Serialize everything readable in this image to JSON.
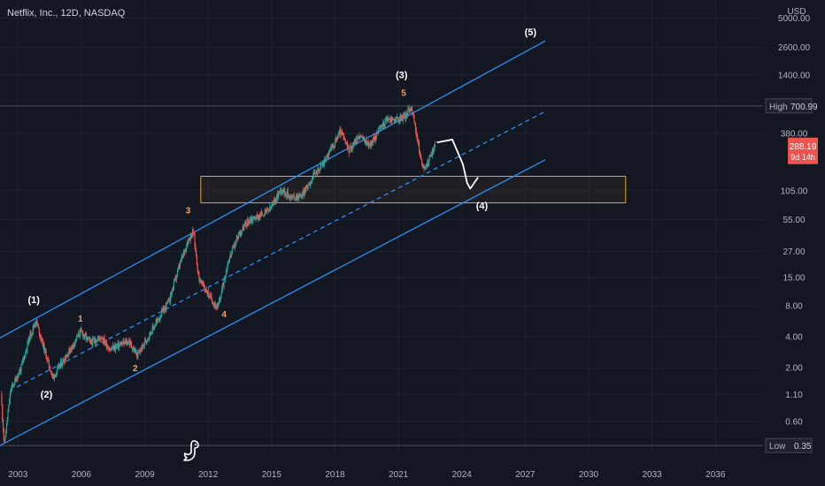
{
  "header": {
    "title": "Netflix, Inc., 12D, NASDAQ"
  },
  "colors": {
    "background": "#131722",
    "grid": "#1e222d",
    "text": "#b2b5be",
    "channel": "#2a8ff7",
    "bull": "#26a69a",
    "bear": "#ef5350",
    "zone": "#f0a030",
    "projection": "#ffffff",
    "label_minor": "#f0a070",
    "label_major": "#ffffff"
  },
  "chart_data": {
    "type": "candlestick",
    "title": "Netflix, Inc., 12D, NASDAQ",
    "currency_label": "USD",
    "y_scale": "log",
    "ylim": [
      0.3,
      7500
    ],
    "xlim": [
      2002.4,
      2038.5
    ],
    "x_ticks": [
      "2003",
      "2006",
      "2009",
      "2012",
      "2015",
      "2018",
      "2021",
      "2024",
      "2027",
      "2030",
      "2033",
      "2036"
    ],
    "y_ticks": [
      "5000.00",
      "2600.00",
      "1400.00",
      "380.00",
      "105.00",
      "55.00",
      "27.00",
      "15.00",
      "8.00",
      "4.00",
      "2.00",
      "1.10",
      "0.60"
    ],
    "price_path": [
      [
        2002.45,
        1.1
      ],
      [
        2002.6,
        0.35
      ],
      [
        2002.9,
        1.2
      ],
      [
        2003.4,
        2.0
      ],
      [
        2003.8,
        4.0
      ],
      [
        2004.1,
        5.8
      ],
      [
        2004.5,
        3.0
      ],
      [
        2004.9,
        1.6
      ],
      [
        2005.3,
        2.2
      ],
      [
        2005.8,
        3.2
      ],
      [
        2006.2,
        4.5
      ],
      [
        2006.7,
        3.5
      ],
      [
        2007.2,
        4.0
      ],
      [
        2007.6,
        3.0
      ],
      [
        2008.0,
        3.3
      ],
      [
        2008.5,
        3.6
      ],
      [
        2008.9,
        2.6
      ],
      [
        2009.4,
        4.0
      ],
      [
        2009.9,
        6.0
      ],
      [
        2010.4,
        9.0
      ],
      [
        2010.9,
        20.0
      ],
      [
        2011.3,
        35.0
      ],
      [
        2011.55,
        42.0
      ],
      [
        2011.8,
        15.0
      ],
      [
        2012.3,
        10.0
      ],
      [
        2012.7,
        7.5
      ],
      [
        2013.2,
        22.0
      ],
      [
        2013.7,
        40.0
      ],
      [
        2014.2,
        55.0
      ],
      [
        2014.7,
        60.0
      ],
      [
        2015.2,
        70.0
      ],
      [
        2015.7,
        110.0
      ],
      [
        2016.2,
        90.0
      ],
      [
        2016.7,
        95.0
      ],
      [
        2017.2,
        145.0
      ],
      [
        2017.7,
        195.0
      ],
      [
        2018.2,
        300.0
      ],
      [
        2018.5,
        400.0
      ],
      [
        2018.9,
        260.0
      ],
      [
        2019.4,
        360.0
      ],
      [
        2019.9,
        290.0
      ],
      [
        2020.3,
        400.0
      ],
      [
        2020.7,
        520.0
      ],
      [
        2021.2,
        520.0
      ],
      [
        2021.6,
        560.0
      ],
      [
        2021.85,
        700.99
      ],
      [
        2022.1,
        380.0
      ],
      [
        2022.35,
        190.0
      ],
      [
        2022.55,
        175.0
      ],
      [
        2022.8,
        240.0
      ],
      [
        2023.0,
        288.19
      ]
    ],
    "channel": {
      "upper": [
        [
          2002.3,
          3.8
        ],
        [
          2028.2,
          3000
        ]
      ],
      "middle": [
        [
          2003.2,
          1.3
        ],
        [
          2028.2,
          620
        ]
      ],
      "lower": [
        [
          2002.4,
          0.35
        ],
        [
          2028.2,
          210
        ]
      ]
    },
    "projection_path": [
      [
        2023.1,
        310
      ],
      [
        2023.8,
        330
      ],
      [
        2024.3,
        190
      ],
      [
        2024.5,
        125
      ],
      [
        2024.65,
        110
      ],
      [
        2025.0,
        140
      ]
    ],
    "support_zone": {
      "x": [
        2011.9,
        2032.0
      ],
      "y": [
        80,
        145
      ]
    },
    "high": {
      "label": "High",
      "value": "700.99"
    },
    "low": {
      "label": "Low",
      "value": "0.35"
    },
    "last_price": {
      "value": "288.19",
      "countdown": "9d 14h"
    },
    "annotations": [
      {
        "text": "(1)",
        "x": 2004.0,
        "y": 8.5,
        "kind": "major"
      },
      {
        "text": "(2)",
        "x": 2004.6,
        "y": 1.02,
        "kind": "major"
      },
      {
        "text": "(3)",
        "x": 2021.4,
        "y": 1300,
        "kind": "major"
      },
      {
        "text": "(4)",
        "x": 2025.2,
        "y": 70,
        "kind": "major"
      },
      {
        "text": "(5)",
        "x": 2027.5,
        "y": 3400,
        "kind": "major"
      },
      {
        "text": "1",
        "x": 2006.2,
        "y": 5.6,
        "kind": "minor"
      },
      {
        "text": "2",
        "x": 2008.8,
        "y": 1.85,
        "kind": "minor"
      },
      {
        "text": "3",
        "x": 2011.3,
        "y": 63,
        "kind": "minor"
      },
      {
        "text": "4",
        "x": 2013.0,
        "y": 6.2,
        "kind": "minor"
      },
      {
        "text": "5",
        "x": 2021.5,
        "y": 880,
        "kind": "minor"
      }
    ]
  }
}
